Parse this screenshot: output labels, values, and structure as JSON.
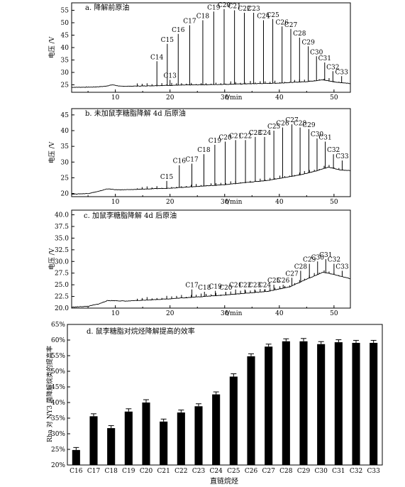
{
  "chart_data": [
    {
      "type": "line",
      "panel_title": "a. 降解前原油",
      "ylabel": "电压 /V",
      "xlabel_italic": "t",
      "xlabel_unit": "/min",
      "xlim": [
        2,
        53
      ],
      "ylim": [
        22,
        58
      ],
      "yticks": [
        25,
        30,
        35,
        40,
        45,
        50,
        55
      ],
      "xticks": [
        10,
        20,
        30,
        40,
        50
      ],
      "baseline": [
        [
          2,
          24.0
        ],
        [
          6,
          24.1
        ],
        [
          8,
          24.4
        ],
        [
          9.5,
          25.0
        ],
        [
          11,
          24.4
        ],
        [
          14,
          24.5
        ],
        [
          20,
          24.8
        ],
        [
          30,
          25.2
        ],
        [
          40,
          25.7
        ],
        [
          45,
          26.3
        ],
        [
          48,
          27.0
        ],
        [
          50,
          26.2
        ],
        [
          53,
          25.5
        ]
      ],
      "peaks": [
        {
          "label": "C13",
          "x": 20.0,
          "top": 27.0
        },
        {
          "label": "C14",
          "x": 17.6,
          "top": 34.5
        },
        {
          "label": "C15",
          "x": 19.5,
          "top": 41.5
        },
        {
          "label": "C16",
          "x": 21.5,
          "top": 45.5
        },
        {
          "label": "C17",
          "x": 23.6,
          "top": 49.0
        },
        {
          "label": "C18",
          "x": 26.0,
          "top": 51.0
        },
        {
          "label": "C19",
          "x": 28.0,
          "top": 54.5
        },
        {
          "label": "C20",
          "x": 29.9,
          "top": 55.5
        },
        {
          "label": "C21",
          "x": 31.8,
          "top": 55.0
        },
        {
          "label": "C22",
          "x": 33.6,
          "top": 54.0
        },
        {
          "label": "C23",
          "x": 35.3,
          "top": 54.0
        },
        {
          "label": "C24",
          "x": 37.1,
          "top": 51.0
        },
        {
          "label": "C25",
          "x": 38.8,
          "top": 51.5
        },
        {
          "label": "C26",
          "x": 40.5,
          "top": 48.5
        },
        {
          "label": "C27",
          "x": 42.1,
          "top": 47.5
        },
        {
          "label": "C28",
          "x": 43.7,
          "top": 44.0
        },
        {
          "label": "C29",
          "x": 45.3,
          "top": 40.5
        },
        {
          "label": "C30",
          "x": 46.8,
          "top": 36.5
        },
        {
          "label": "C31",
          "x": 48.3,
          "top": 34.0
        },
        {
          "label": "C32",
          "x": 49.8,
          "top": 30.5
        },
        {
          "label": "C33",
          "x": 51.4,
          "top": 28.5
        }
      ]
    },
    {
      "type": "line",
      "panel_title": "b. 未加鼠李糖脂降解 4d 后原油",
      "ylabel": "电压 /V",
      "xlabel_italic": "t",
      "xlabel_unit": "/min",
      "xlim": [
        2,
        53
      ],
      "ylim": [
        19,
        47
      ],
      "yticks": [
        20,
        25,
        30,
        35,
        40,
        45
      ],
      "xticks": [
        10,
        20,
        30,
        40,
        50
      ],
      "baseline": [
        [
          2,
          19.8
        ],
        [
          5,
          20.0
        ],
        [
          7,
          20.7
        ],
        [
          8.5,
          21.5
        ],
        [
          10,
          21.2
        ],
        [
          12,
          21.2
        ],
        [
          20,
          21.7
        ],
        [
          30,
          22.8
        ],
        [
          38,
          24.2
        ],
        [
          44,
          26.0
        ],
        [
          47,
          27.3
        ],
        [
          49,
          28.4
        ],
        [
          51,
          27.5
        ],
        [
          53,
          27.3
        ]
      ],
      "peaks": [
        {
          "label": "C15",
          "x": 19.4,
          "top": 24.0
        },
        {
          "label": "C16",
          "x": 21.7,
          "top": 29.0
        },
        {
          "label": "C17",
          "x": 24.0,
          "top": 29.5
        },
        {
          "label": "C18",
          "x": 26.2,
          "top": 32.5
        },
        {
          "label": "C19",
          "x": 28.2,
          "top": 35.5
        },
        {
          "label": "C20",
          "x": 30.1,
          "top": 36.5
        },
        {
          "label": "C21",
          "x": 32.0,
          "top": 37.0
        },
        {
          "label": "C22",
          "x": 33.8,
          "top": 37.0
        },
        {
          "label": "C23",
          "x": 35.6,
          "top": 38.0
        },
        {
          "label": "C24",
          "x": 37.3,
          "top": 38.0
        },
        {
          "label": "C25",
          "x": 39.0,
          "top": 40.0
        },
        {
          "label": "C26",
          "x": 40.6,
          "top": 41.0
        },
        {
          "label": "C27",
          "x": 42.3,
          "top": 42.0
        },
        {
          "label": "C28",
          "x": 43.8,
          "top": 41.0
        },
        {
          "label": "C29",
          "x": 45.4,
          "top": 40.5
        },
        {
          "label": "C30",
          "x": 46.9,
          "top": 37.5
        },
        {
          "label": "C31",
          "x": 48.4,
          "top": 36.5
        },
        {
          "label": "C32",
          "x": 49.9,
          "top": 32.5
        },
        {
          "label": "C33",
          "x": 51.5,
          "top": 30.5
        }
      ]
    },
    {
      "type": "line",
      "panel_title": "c. 加鼠李糖脂降解 4d 后原油",
      "ylabel": "电压 /V",
      "xlabel_italic": "t",
      "xlabel_unit": "/min",
      "xlim": [
        2,
        53
      ],
      "ylim": [
        20,
        41
      ],
      "yticks": [
        20.0,
        22.5,
        25.0,
        27.5,
        30.0,
        32.5,
        35.0,
        37.5,
        40.0
      ],
      "ytick_labels": [
        "20.0",
        "22.5",
        "25.0",
        "27.5",
        "30.0",
        "32.5",
        "35.0",
        "37.5",
        "40.0"
      ],
      "xticks": [
        10,
        20,
        30,
        40,
        50
      ],
      "baseline": [
        [
          2,
          20.2
        ],
        [
          5,
          20.4
        ],
        [
          7,
          20.9
        ],
        [
          8.5,
          21.6
        ],
        [
          10,
          21.6
        ],
        [
          12,
          21.5
        ],
        [
          20,
          22.0
        ],
        [
          30,
          22.8
        ],
        [
          38,
          23.6
        ],
        [
          42,
          24.6
        ],
        [
          45,
          26.2
        ],
        [
          48,
          27.7
        ],
        [
          50,
          27.2
        ],
        [
          53,
          26.3
        ]
      ],
      "peaks": [
        {
          "label": "C17",
          "x": 24.0,
          "top": 24.0
        },
        {
          "label": "C18",
          "x": 26.3,
          "top": 23.5
        },
        {
          "label": "C19",
          "x": 28.3,
          "top": 23.7
        },
        {
          "label": "C20",
          "x": 30.2,
          "top": 23.5
        },
        {
          "label": "C21",
          "x": 32.0,
          "top": 24.0
        },
        {
          "label": "C22",
          "x": 33.7,
          "top": 24.0
        },
        {
          "label": "C23",
          "x": 35.5,
          "top": 24.0
        },
        {
          "label": "C24",
          "x": 37.3,
          "top": 24.0
        },
        {
          "label": "C25",
          "x": 39.0,
          "top": 25.0
        },
        {
          "label": "C26",
          "x": 40.7,
          "top": 25.0
        },
        {
          "label": "C27",
          "x": 42.3,
          "top": 26.5
        },
        {
          "label": "C28",
          "x": 43.9,
          "top": 28.0
        },
        {
          "label": "C29",
          "x": 45.5,
          "top": 29.5
        },
        {
          "label": "C30",
          "x": 47.0,
          "top": 30.0
        },
        {
          "label": "C31",
          "x": 48.5,
          "top": 30.5
        },
        {
          "label": "C32",
          "x": 50.0,
          "top": 29.5
        },
        {
          "label": "C33",
          "x": 51.5,
          "top": 28.0
        }
      ]
    },
    {
      "type": "bar",
      "panel_title": "d. 鼠李糖脂对烷烃降解提高的效率",
      "ylabel": "Rha 对 NY3 菌降解烷类的提高率",
      "xlabel": "直链烷烃",
      "categories": [
        "C16",
        "C17",
        "C18",
        "C19",
        "C20",
        "C21",
        "C22",
        "C23",
        "C24",
        "C25",
        "C26",
        "C27",
        "C28",
        "C29",
        "C30",
        "C31",
        "C32",
        "C33"
      ],
      "values": [
        24.8,
        35.6,
        31.8,
        37.1,
        40.0,
        33.9,
        36.8,
        38.8,
        42.6,
        48.3,
        54.8,
        57.9,
        59.6,
        59.6,
        58.7,
        59.3,
        59.1,
        59.1
      ],
      "errors": [
        0.8,
        0.8,
        0.8,
        0.9,
        0.9,
        0.8,
        0.8,
        0.8,
        0.8,
        0.9,
        0.8,
        0.8,
        0.8,
        0.9,
        0.8,
        0.8,
        0.8,
        0.8
      ],
      "ylim": [
        20,
        65
      ],
      "yticks": [
        20,
        25,
        30,
        35,
        40,
        45,
        50,
        55,
        60,
        65
      ],
      "ytick_labels": [
        "20%",
        "25%",
        "30%",
        "35%",
        "40%",
        "45%",
        "50%",
        "55%",
        "60%",
        "65%"
      ]
    }
  ]
}
